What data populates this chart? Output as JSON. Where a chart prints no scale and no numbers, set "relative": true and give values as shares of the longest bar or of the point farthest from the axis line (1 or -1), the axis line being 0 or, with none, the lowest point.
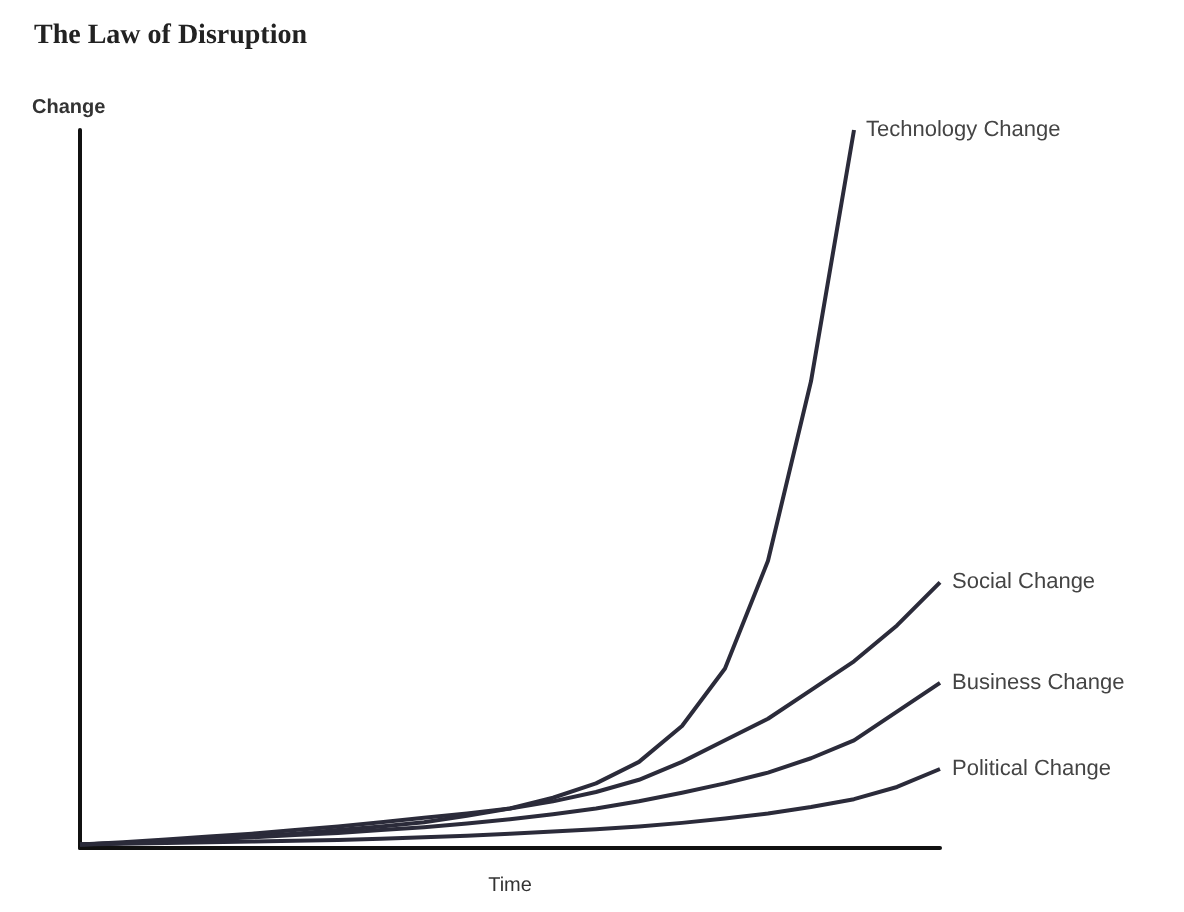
{
  "chart_data": {
    "type": "line",
    "title": "The Law of Disruption",
    "xlabel": "Time",
    "ylabel": "Change",
    "relative": true,
    "marker": "none",
    "categories": [
      null,
      null,
      null,
      null,
      null,
      null,
      null,
      null,
      null,
      null,
      null,
      null,
      null,
      null,
      null,
      null,
      null,
      null,
      null,
      null,
      null
    ],
    "series": [
      {
        "name": "Technology Change",
        "color": "#2b2b3a",
        "values": [
          0.005,
          0.007,
          0.01,
          0.013,
          0.016,
          0.02,
          0.025,
          0.03,
          0.036,
          0.045,
          0.055,
          0.07,
          0.09,
          0.12,
          0.17,
          0.25,
          0.4,
          0.65,
          1.0,
          null,
          null
        ]
      },
      {
        "name": "Social Change",
        "color": "#2b2b3a",
        "values": [
          0.005,
          0.008,
          0.012,
          0.016,
          0.02,
          0.025,
          0.03,
          0.036,
          0.042,
          0.048,
          0.055,
          0.065,
          0.078,
          0.095,
          0.12,
          0.15,
          0.18,
          0.22,
          0.26,
          0.31,
          0.37
        ]
      },
      {
        "name": "Business Change",
        "color": "#2b2b3a",
        "values": [
          0.005,
          0.007,
          0.009,
          0.012,
          0.015,
          0.018,
          0.021,
          0.025,
          0.029,
          0.034,
          0.04,
          0.047,
          0.055,
          0.065,
          0.077,
          0.09,
          0.105,
          0.125,
          0.15,
          0.19,
          0.23
        ]
      },
      {
        "name": "Political Change",
        "color": "#2b2b3a",
        "values": [
          0.005,
          0.006,
          0.007,
          0.008,
          0.009,
          0.01,
          0.011,
          0.013,
          0.015,
          0.017,
          0.02,
          0.023,
          0.026,
          0.03,
          0.035,
          0.041,
          0.048,
          0.057,
          0.068,
          0.085,
          0.11
        ]
      }
    ]
  }
}
